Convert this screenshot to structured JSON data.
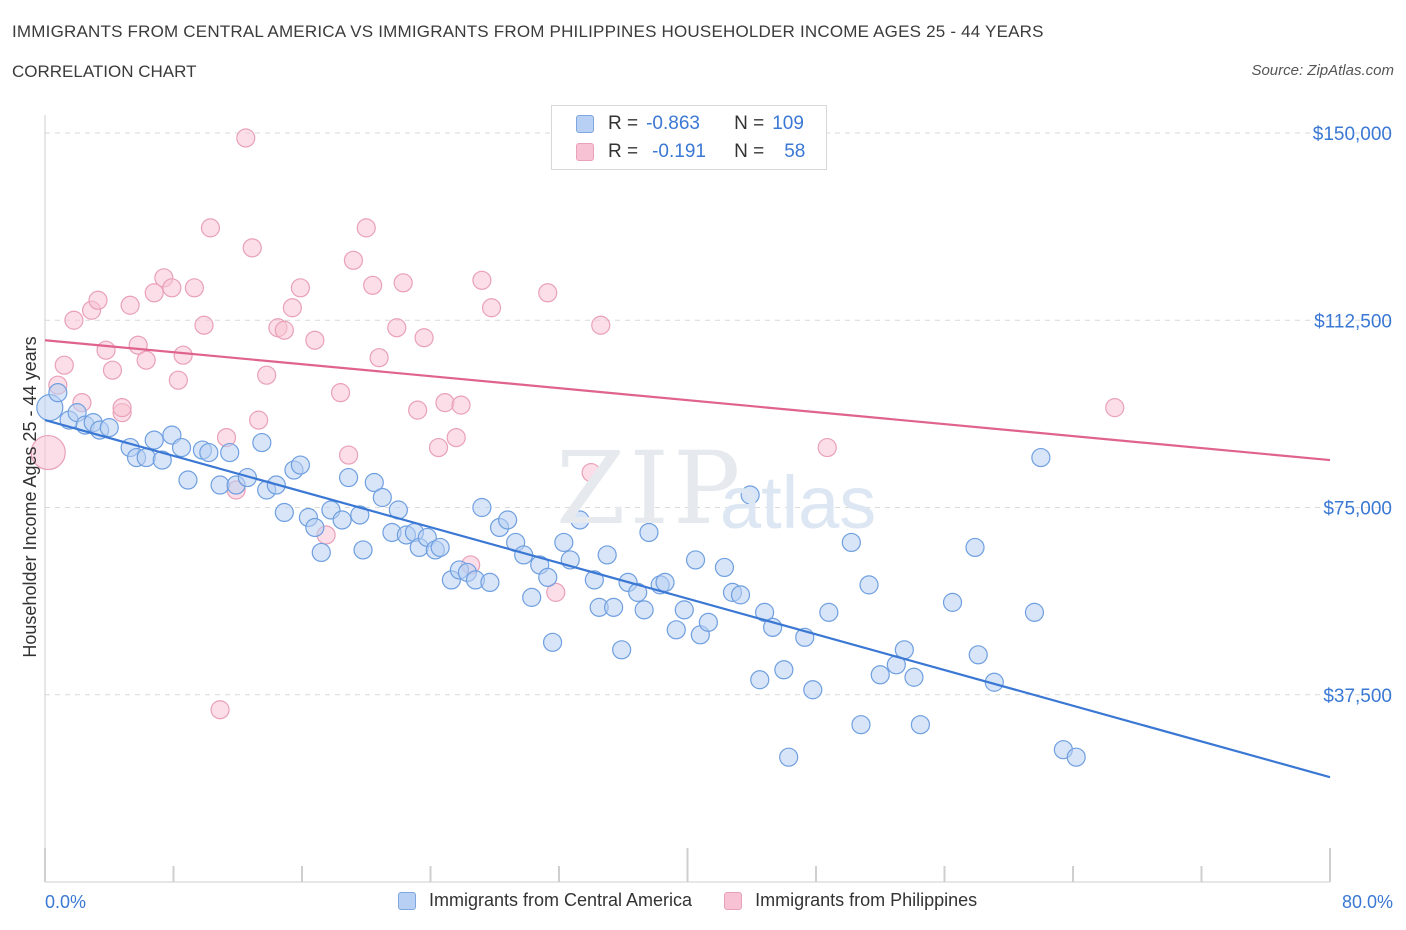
{
  "header": {
    "title": "IMMIGRANTS FROM CENTRAL AMERICA VS IMMIGRANTS FROM PHILIPPINES HOUSEHOLDER INCOME AGES 25 - 44 YEARS",
    "subtitle": "CORRELATION CHART",
    "source": "Source: ZipAtlas.com"
  },
  "watermark": {
    "zip": "ZIP",
    "atlas": "atlas"
  },
  "legend": {
    "r_label": "R =",
    "n_label": "N =",
    "series": [
      {
        "name": "Immigrants from Central America",
        "r": "-0.863",
        "n": "109",
        "fill": "#b8d0f3",
        "stroke": "#7ea6e0"
      },
      {
        "name": "Immigrants from Philippines",
        "r": "-0.191",
        "n": "58",
        "fill": "#f7c2d3",
        "stroke": "#e9a0b9"
      }
    ]
  },
  "colors": {
    "blue_line": "#3a78d4",
    "pink_line": "#e0628e",
    "blue_point_fill": "#b8d0f3",
    "blue_point_stroke": "#6f9fe0",
    "pink_point_fill": "#f7c2d3",
    "pink_point_stroke": "#e9a0b9",
    "grid": "#d9d9d9",
    "axis_label": "#3a78d4"
  },
  "chart_data": {
    "type": "scatter",
    "title": "IMMIGRANTS FROM CENTRAL AMERICA VS IMMIGRANTS FROM PHILIPPINES HOUSEHOLDER INCOME AGES 25 - 44 YEARS",
    "xlabel": "",
    "ylabel": "Householder Income Ages 25 - 44 years",
    "xlim": [
      0,
      80
    ],
    "ylim": [
      0,
      152000
    ],
    "x_tick_labels": [
      "0.0%",
      "80.0%"
    ],
    "y_ticks": [
      37500,
      75000,
      112500,
      150000
    ],
    "y_tick_labels": [
      "$37,500",
      "$75,000",
      "$112,500",
      "$150,000"
    ],
    "grid": true,
    "legend_position": "top-center",
    "series": [
      {
        "name": "Immigrants from Central America",
        "trend": {
          "x": [
            0,
            80
          ],
          "y": [
            92500,
            21000
          ]
        },
        "points": [
          [
            0.3,
            95000
          ],
          [
            0.8,
            98000
          ],
          [
            1.5,
            92500
          ],
          [
            2.0,
            94000
          ],
          [
            2.5,
            91500
          ],
          [
            3.0,
            92000
          ],
          [
            3.4,
            90500
          ],
          [
            4.0,
            91000
          ],
          [
            5.3,
            87000
          ],
          [
            5.7,
            85000
          ],
          [
            6.3,
            85000
          ],
          [
            6.8,
            88500
          ],
          [
            7.3,
            84500
          ],
          [
            7.9,
            89500
          ],
          [
            8.5,
            87000
          ],
          [
            8.9,
            80500
          ],
          [
            9.8,
            86500
          ],
          [
            10.2,
            86000
          ],
          [
            10.9,
            79500
          ],
          [
            11.5,
            86000
          ],
          [
            11.9,
            79500
          ],
          [
            12.6,
            81000
          ],
          [
            13.5,
            88000
          ],
          [
            13.8,
            78500
          ],
          [
            14.4,
            79500
          ],
          [
            14.9,
            74000
          ],
          [
            15.5,
            82500
          ],
          [
            15.9,
            83500
          ],
          [
            16.4,
            73000
          ],
          [
            16.8,
            71000
          ],
          [
            17.2,
            66000
          ],
          [
            17.8,
            74500
          ],
          [
            18.5,
            72500
          ],
          [
            18.9,
            81000
          ],
          [
            19.6,
            73500
          ],
          [
            19.8,
            66500
          ],
          [
            20.5,
            80000
          ],
          [
            21.0,
            77000
          ],
          [
            21.6,
            70000
          ],
          [
            22.0,
            74500
          ],
          [
            22.5,
            69500
          ],
          [
            23.0,
            70000
          ],
          [
            23.3,
            67000
          ],
          [
            23.8,
            69000
          ],
          [
            24.3,
            66500
          ],
          [
            24.6,
            67000
          ],
          [
            25.3,
            60500
          ],
          [
            25.8,
            62500
          ],
          [
            26.3,
            62000
          ],
          [
            26.8,
            60500
          ],
          [
            27.2,
            75000
          ],
          [
            27.7,
            60000
          ],
          [
            28.3,
            71000
          ],
          [
            28.8,
            72500
          ],
          [
            29.3,
            68000
          ],
          [
            29.8,
            65500
          ],
          [
            30.3,
            57000
          ],
          [
            30.8,
            63500
          ],
          [
            31.3,
            61000
          ],
          [
            31.6,
            48000
          ],
          [
            32.3,
            68000
          ],
          [
            32.7,
            64500
          ],
          [
            33.3,
            72500
          ],
          [
            34.2,
            60500
          ],
          [
            34.5,
            55000
          ],
          [
            35.0,
            65500
          ],
          [
            35.4,
            55000
          ],
          [
            35.9,
            46500
          ],
          [
            36.3,
            60000
          ],
          [
            36.9,
            58000
          ],
          [
            37.3,
            54500
          ],
          [
            37.6,
            70000
          ],
          [
            38.3,
            59500
          ],
          [
            38.6,
            60000
          ],
          [
            39.3,
            50500
          ],
          [
            39.8,
            54500
          ],
          [
            40.5,
            64500
          ],
          [
            40.8,
            49500
          ],
          [
            41.3,
            52000
          ],
          [
            42.3,
            63000
          ],
          [
            42.8,
            58000
          ],
          [
            43.3,
            57500
          ],
          [
            43.9,
            77500
          ],
          [
            44.5,
            40500
          ],
          [
            44.8,
            54000
          ],
          [
            45.3,
            51000
          ],
          [
            46.0,
            42500
          ],
          [
            46.3,
            25000
          ],
          [
            47.3,
            49000
          ],
          [
            47.8,
            38500
          ],
          [
            48.8,
            54000
          ],
          [
            50.2,
            68000
          ],
          [
            50.8,
            31500
          ],
          [
            51.3,
            59500
          ],
          [
            52.0,
            41500
          ],
          [
            53.0,
            43500
          ],
          [
            53.5,
            46500
          ],
          [
            54.1,
            41000
          ],
          [
            54.5,
            31500
          ],
          [
            56.5,
            56000
          ],
          [
            57.9,
            67000
          ],
          [
            58.1,
            45500
          ],
          [
            59.1,
            40000
          ],
          [
            61.6,
            54000
          ],
          [
            62.0,
            85000
          ],
          [
            63.4,
            26500
          ],
          [
            64.2,
            25000
          ]
        ]
      },
      {
        "name": "Immigrants from Philippines",
        "trend": {
          "x": [
            0,
            80
          ],
          "y": [
            108500,
            84500
          ]
        },
        "points": [
          [
            0.2,
            86000
          ],
          [
            0.8,
            99500
          ],
          [
            1.2,
            103500
          ],
          [
            1.8,
            112500
          ],
          [
            2.3,
            96000
          ],
          [
            2.9,
            114500
          ],
          [
            3.3,
            116500
          ],
          [
            3.8,
            106500
          ],
          [
            4.2,
            102500
          ],
          [
            4.8,
            94000
          ],
          [
            5.3,
            115500
          ],
          [
            5.8,
            107500
          ],
          [
            6.3,
            104500
          ],
          [
            6.8,
            118000
          ],
          [
            7.4,
            121000
          ],
          [
            7.9,
            119000
          ],
          [
            8.3,
            100500
          ],
          [
            8.6,
            105500
          ],
          [
            9.3,
            119000
          ],
          [
            9.9,
            111500
          ],
          [
            10.3,
            131000
          ],
          [
            10.9,
            34500
          ],
          [
            11.3,
            89000
          ],
          [
            11.9,
            78500
          ],
          [
            12.5,
            149000
          ],
          [
            12.9,
            127000
          ],
          [
            13.3,
            92500
          ],
          [
            13.8,
            101500
          ],
          [
            14.5,
            111000
          ],
          [
            14.9,
            110500
          ],
          [
            15.4,
            115000
          ],
          [
            15.9,
            119000
          ],
          [
            16.8,
            108500
          ],
          [
            17.5,
            69500
          ],
          [
            18.4,
            98000
          ],
          [
            18.9,
            85500
          ],
          [
            19.2,
            124500
          ],
          [
            20.0,
            131000
          ],
          [
            20.4,
            119500
          ],
          [
            20.8,
            105000
          ],
          [
            21.9,
            111000
          ],
          [
            22.3,
            120000
          ],
          [
            23.2,
            94500
          ],
          [
            23.6,
            109000
          ],
          [
            24.5,
            87000
          ],
          [
            24.9,
            96000
          ],
          [
            25.6,
            89000
          ],
          [
            25.9,
            95500
          ],
          [
            26.5,
            63500
          ],
          [
            27.2,
            120500
          ],
          [
            27.8,
            115000
          ],
          [
            31.3,
            118000
          ],
          [
            31.8,
            58000
          ],
          [
            34.0,
            82000
          ],
          [
            34.6,
            111500
          ],
          [
            48.7,
            87000
          ],
          [
            66.6,
            95000
          ],
          [
            4.8,
            95000
          ]
        ]
      }
    ]
  }
}
